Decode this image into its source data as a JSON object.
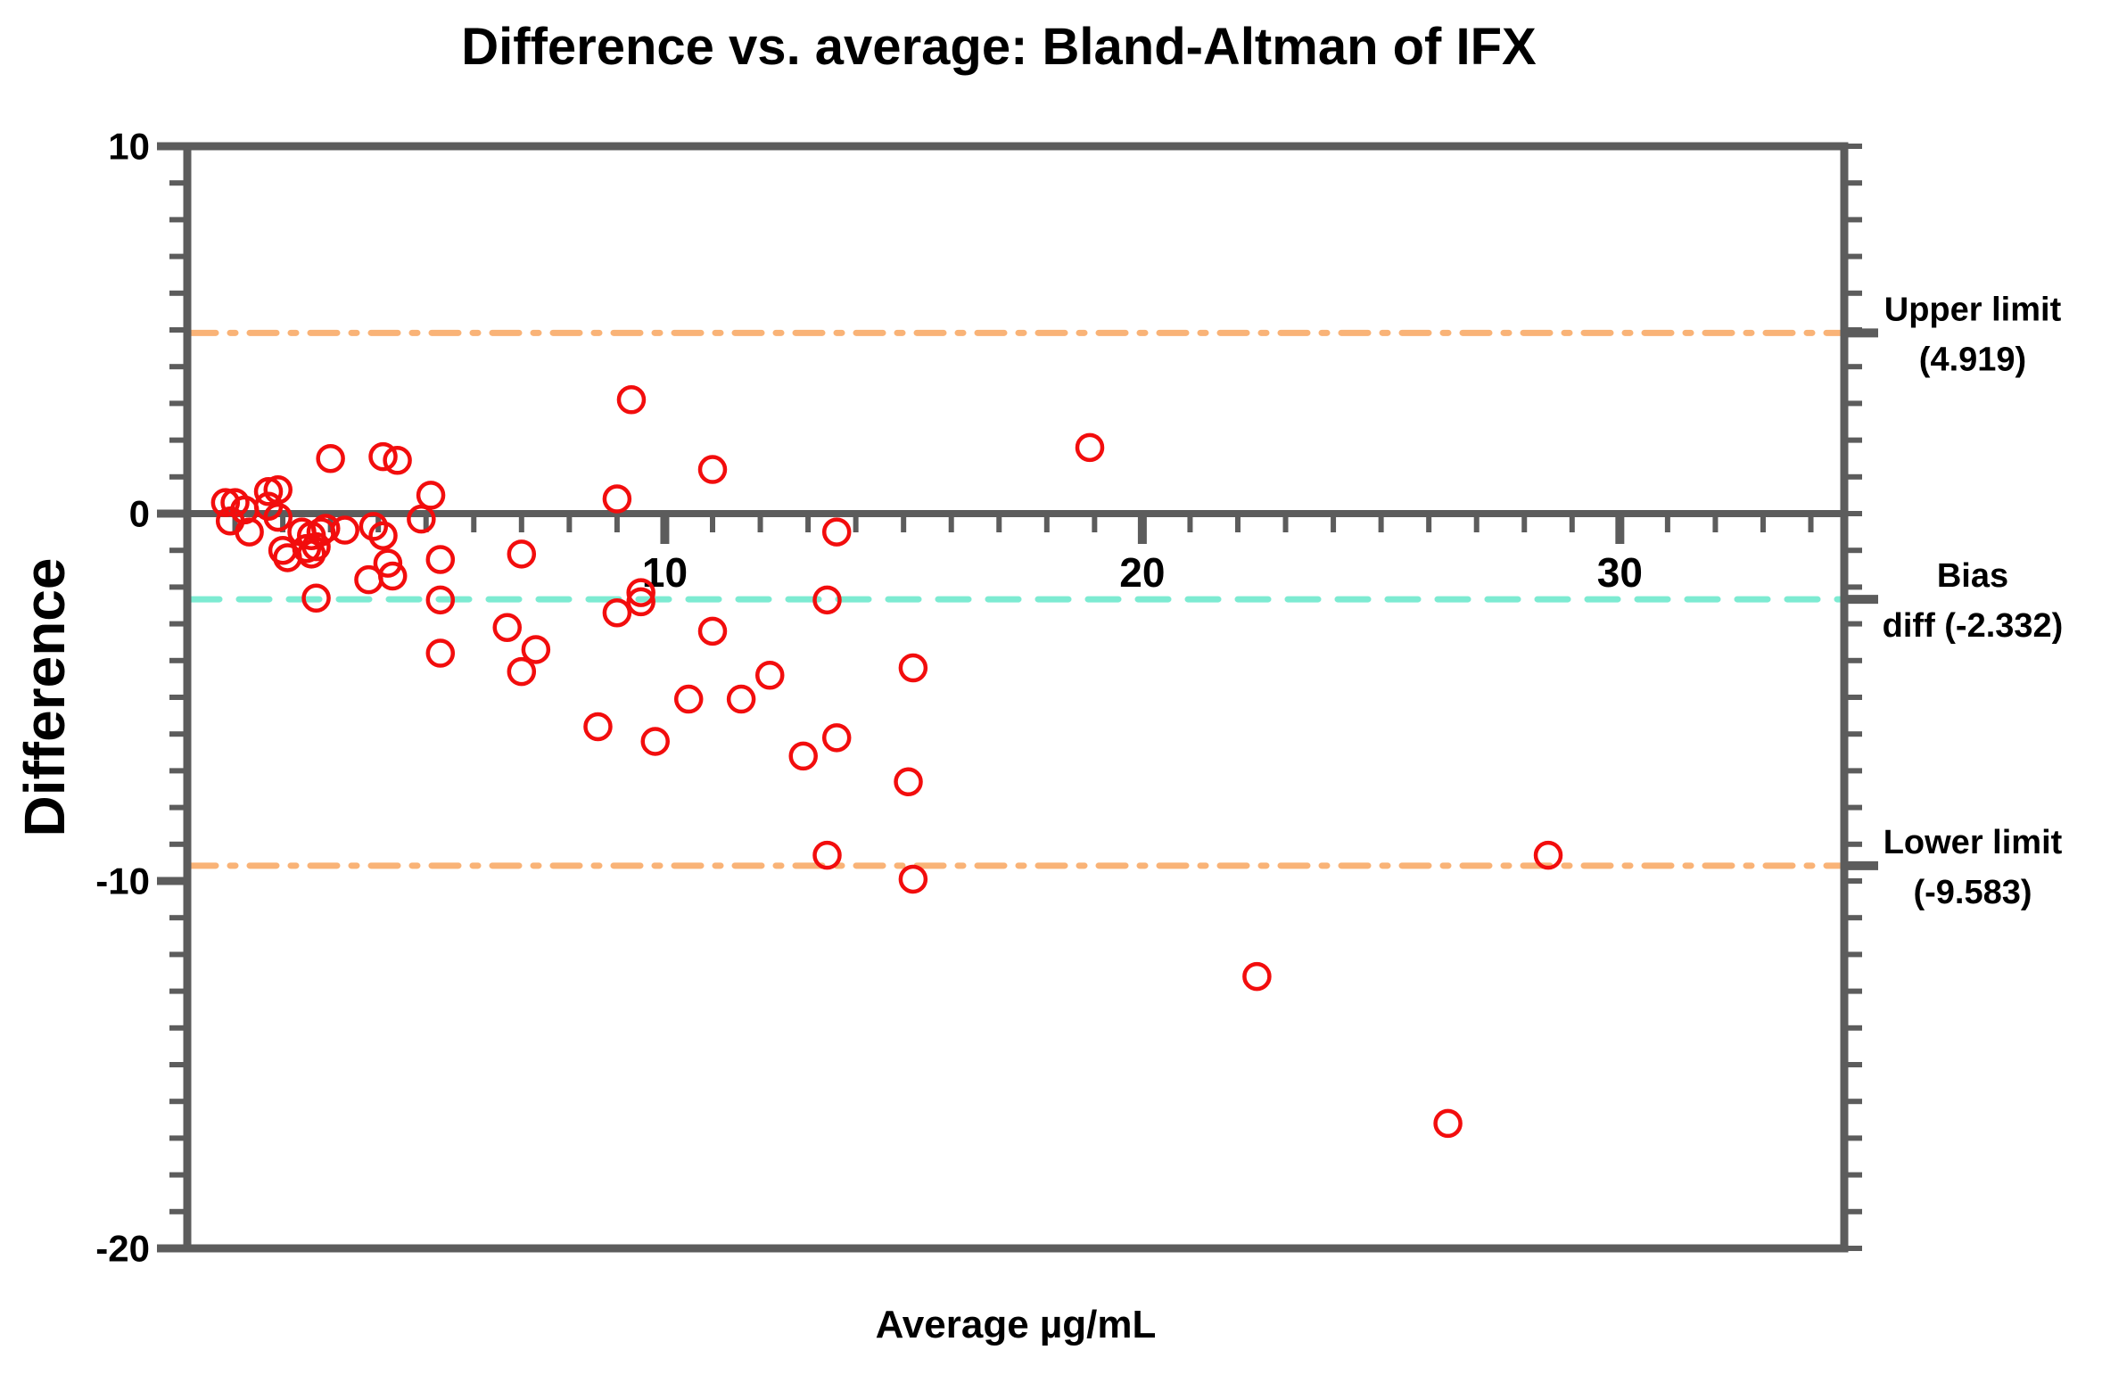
{
  "chart_data": {
    "type": "scatter",
    "title": "Difference vs. average: Bland-Altman of IFX",
    "xlabel": "Average µg/mL",
    "ylabel": "Difference",
    "xlim": [
      0,
      34.7
    ],
    "ylim": [
      -20,
      10
    ],
    "x_major_ticks": [
      10,
      20,
      30
    ],
    "y_major_ticks": [
      10,
      0,
      -10,
      -20
    ],
    "minor_tick_step": 1,
    "grid": false,
    "legend": false,
    "marker": "open-circle",
    "point_color": "#F20D0D",
    "axis_color": "#5C5C5C",
    "reference_lines": [
      {
        "id": "upper-limit",
        "value": 4.919,
        "color": "#F9B377",
        "style": "dashdot",
        "label_line1": "Upper limit",
        "label_line2": "(4.919)"
      },
      {
        "id": "bias",
        "value": -2.332,
        "color": "#7DEBD2",
        "style": "dashed",
        "label_line1": "Bias",
        "label_line2": "diff (-2.332)"
      },
      {
        "id": "lower-limit",
        "value": -9.583,
        "color": "#F9B377",
        "style": "dashdot",
        "label_line1": "Lower limit",
        "label_line2": "(-9.583)"
      }
    ],
    "points": [
      [
        0.8,
        0.3
      ],
      [
        1.0,
        0.3
      ],
      [
        1.2,
        0.1
      ],
      [
        0.9,
        -0.2
      ],
      [
        1.3,
        -0.5
      ],
      [
        1.7,
        0.6
      ],
      [
        1.9,
        0.65
      ],
      [
        1.7,
        0.2
      ],
      [
        1.9,
        -0.1
      ],
      [
        2.0,
        -1.0
      ],
      [
        2.1,
        -1.2
      ],
      [
        2.4,
        -0.5
      ],
      [
        2.6,
        -0.6
      ],
      [
        2.8,
        -0.5
      ],
      [
        2.9,
        -0.4
      ],
      [
        3.3,
        -0.45
      ],
      [
        3.9,
        -0.35
      ],
      [
        4.1,
        -0.6
      ],
      [
        2.5,
        -0.95
      ],
      [
        2.6,
        -1.1
      ],
      [
        2.7,
        -0.9
      ],
      [
        3.8,
        -1.8
      ],
      [
        4.2,
        -1.35
      ],
      [
        4.3,
        -1.7
      ],
      [
        2.7,
        -2.3
      ],
      [
        3.0,
        1.5
      ],
      [
        4.1,
        1.55
      ],
      [
        4.4,
        1.45
      ],
      [
        5.1,
        0.5
      ],
      [
        9.3,
        3.1
      ],
      [
        11.0,
        1.2
      ],
      [
        9.0,
        0.4
      ],
      [
        18.9,
        1.8
      ],
      [
        4.9,
        -0.15
      ],
      [
        5.3,
        -1.25
      ],
      [
        5.3,
        -2.35
      ],
      [
        5.3,
        -3.8
      ],
      [
        7.0,
        -1.1
      ],
      [
        6.7,
        -3.1
      ],
      [
        7.3,
        -3.7
      ],
      [
        7.0,
        -4.3
      ],
      [
        8.6,
        -5.8
      ],
      [
        9.8,
        -6.2
      ],
      [
        9.5,
        -2.15
      ],
      [
        9.5,
        -2.4
      ],
      [
        9.0,
        -2.7
      ],
      [
        10.5,
        -5.05
      ],
      [
        11.0,
        -3.2
      ],
      [
        11.6,
        -5.05
      ],
      [
        12.2,
        -4.4
      ],
      [
        12.9,
        -6.6
      ],
      [
        13.6,
        -6.1
      ],
      [
        13.6,
        -0.5
      ],
      [
        13.4,
        -2.35
      ],
      [
        13.4,
        -9.3
      ],
      [
        15.2,
        -4.2
      ],
      [
        15.1,
        -7.3
      ],
      [
        15.2,
        -9.95
      ],
      [
        22.4,
        -12.6
      ],
      [
        26.4,
        -16.6
      ],
      [
        28.5,
        -9.3
      ]
    ]
  }
}
